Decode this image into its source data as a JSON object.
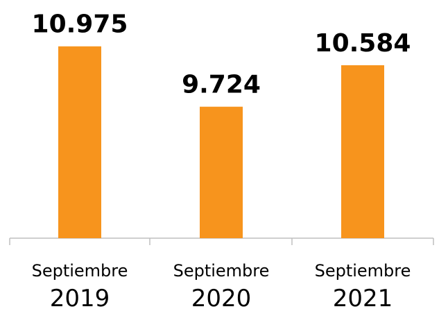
{
  "chart_data": {
    "type": "bar",
    "categories": [
      "Septiembre\n2019",
      "Septiembre\n2020",
      "Septiembre\n2021"
    ],
    "values": [
      10975,
      9724,
      10584
    ],
    "value_labels": [
      "10.975",
      "9.724",
      "10.584"
    ],
    "color": "#f7941d",
    "ylim": [
      7000,
      11000
    ]
  }
}
